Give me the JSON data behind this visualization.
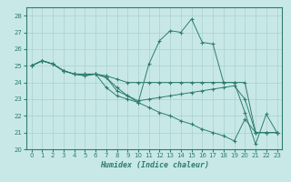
{
  "xlabel": "Humidex (Indice chaleur)",
  "xlim": [
    -0.5,
    23.5
  ],
  "ylim": [
    20,
    28.5
  ],
  "yticks": [
    20,
    21,
    22,
    23,
    24,
    25,
    26,
    27,
    28
  ],
  "xticks": [
    0,
    1,
    2,
    3,
    4,
    5,
    6,
    7,
    8,
    9,
    10,
    11,
    12,
    13,
    14,
    15,
    16,
    17,
    18,
    19,
    20,
    21,
    22,
    23
  ],
  "background_color": "#c8e8e8",
  "line_color": "#2e7d6e",
  "grid_color": "#aacfcf",
  "lines": [
    {
      "y": [
        25.0,
        25.3,
        25.1,
        24.7,
        24.5,
        24.4,
        24.5,
        23.7,
        23.2,
        23.0,
        22.8,
        25.1,
        26.5,
        27.1,
        27.0,
        27.8,
        26.4,
        26.3,
        24.0,
        24.0,
        22.2,
        20.3,
        22.1,
        21.0
      ],
      "mx": [
        0,
        1,
        2,
        3,
        4,
        5,
        6,
        7,
        8,
        9,
        10,
        11,
        12,
        13,
        14,
        15,
        16,
        17,
        18,
        19,
        20,
        21,
        22,
        23
      ]
    },
    {
      "y": [
        25.0,
        25.3,
        25.1,
        24.7,
        24.5,
        24.5,
        24.5,
        24.4,
        24.2,
        24.0,
        24.0,
        24.0,
        24.0,
        24.0,
        24.0,
        24.0,
        24.0,
        24.0,
        24.0,
        24.0,
        24.0,
        21.0,
        21.0,
        21.0
      ],
      "mx": [
        0,
        1,
        2,
        3,
        5,
        6,
        7,
        9,
        19,
        21
      ]
    },
    {
      "y": [
        25.0,
        25.3,
        25.1,
        24.7,
        24.5,
        24.5,
        24.5,
        24.3,
        23.5,
        23.2,
        22.9,
        23.0,
        23.1,
        23.2,
        23.3,
        23.4,
        23.5,
        23.6,
        23.7,
        23.8,
        23.0,
        21.0,
        21.0,
        21.0
      ],
      "mx": [
        0,
        1,
        2,
        3,
        5,
        6,
        7,
        8,
        10,
        19,
        21
      ]
    },
    {
      "y": [
        25.0,
        25.3,
        25.1,
        24.7,
        24.5,
        24.4,
        24.5,
        24.3,
        23.7,
        23.2,
        22.8,
        22.5,
        22.2,
        22.0,
        21.7,
        21.5,
        21.2,
        21.0,
        20.8,
        20.5,
        21.8,
        21.0,
        21.0,
        21.0
      ],
      "mx": [
        0,
        1,
        2,
        3,
        5,
        6,
        7,
        8,
        9,
        19,
        21
      ]
    }
  ]
}
